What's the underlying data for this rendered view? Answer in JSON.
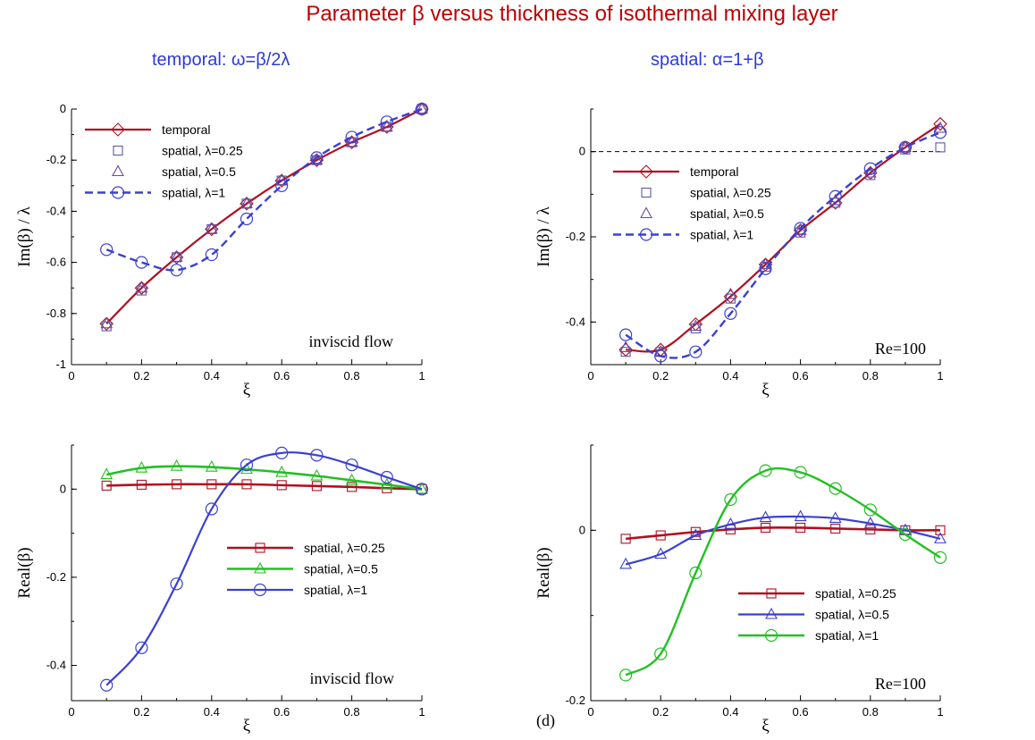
{
  "title": "Parameter β versus thickness of isothermal mixing layer",
  "subtitles": {
    "left": "temporal:  ω=β/2λ",
    "right": "spatial:  α=1+β"
  },
  "panel_tag": "(d)",
  "colors": {
    "title": "#c00000",
    "subtitle": "#2b3bd6",
    "dark_red": "#b01020",
    "blue": "#3a40d0",
    "green": "#22c022",
    "purple": "#6b4aa0"
  },
  "chart_data": [
    {
      "id": "top-left",
      "type": "line",
      "xlabel": "ξ",
      "ylabel": "Im(β) / λ",
      "xlim": [
        0,
        1
      ],
      "ylim": [
        -1,
        0
      ],
      "xticks": [
        "0",
        "0.2",
        "0.4",
        "0.6",
        "0.8",
        "1"
      ],
      "yticks": [
        "0",
        "-0.2",
        "-0.4",
        "-0.6",
        "-0.8",
        "-1"
      ],
      "annotation": "inviscid flow",
      "legend": [
        "temporal",
        "spatial, λ=0.25",
        "spatial, λ=0.5",
        "spatial, λ=1"
      ],
      "series": [
        {
          "name": "temporal",
          "x": [
            0.1,
            0.2,
            0.3,
            0.4,
            0.5,
            0.6,
            0.7,
            0.8,
            0.9,
            1.0
          ],
          "y": [
            -0.84,
            -0.7,
            -0.58,
            -0.47,
            -0.37,
            -0.28,
            -0.2,
            -0.13,
            -0.07,
            0.0
          ]
        },
        {
          "name": "spatial, λ=0.25",
          "x": [
            0.1,
            0.2,
            0.3,
            0.4,
            0.5,
            0.6,
            0.7,
            0.8,
            0.9,
            1.0
          ],
          "y": [
            -0.85,
            -0.71,
            -0.58,
            -0.47,
            -0.37,
            -0.28,
            -0.2,
            -0.13,
            -0.07,
            0.0
          ]
        },
        {
          "name": "spatial, λ=0.5",
          "x": [
            0.1,
            0.2,
            0.3,
            0.4,
            0.5,
            0.6,
            0.7,
            0.8,
            0.9,
            1.0
          ],
          "y": [
            -0.84,
            -0.7,
            -0.58,
            -0.47,
            -0.37,
            -0.28,
            -0.2,
            -0.13,
            -0.07,
            0.0
          ]
        },
        {
          "name": "spatial, λ=1",
          "x": [
            0.1,
            0.2,
            0.3,
            0.4,
            0.5,
            0.6,
            0.7,
            0.8,
            0.9,
            1.0
          ],
          "y": [
            -0.55,
            -0.6,
            -0.63,
            -0.57,
            -0.43,
            -0.3,
            -0.19,
            -0.11,
            -0.05,
            0.0
          ]
        }
      ]
    },
    {
      "id": "top-right",
      "type": "line",
      "xlabel": "ξ",
      "ylabel": "Im(β) / λ",
      "xlim": [
        0,
        1
      ],
      "ylim": [
        -0.5,
        0.1
      ],
      "xticks": [
        "0",
        "0.2",
        "0.4",
        "0.6",
        "0.8",
        "1"
      ],
      "yticks": [
        "0",
        "-0.2",
        "-0.4"
      ],
      "annotation": "Re=100",
      "legend": [
        "temporal",
        "spatial, λ=0.25",
        "spatial, λ=0.5",
        "spatial, λ=1"
      ],
      "series": [
        {
          "name": "temporal",
          "x": [
            0.1,
            0.2,
            0.3,
            0.4,
            0.5,
            0.6,
            0.7,
            0.8,
            0.9,
            1.0
          ],
          "y": [
            -0.465,
            -0.465,
            -0.405,
            -0.34,
            -0.265,
            -0.185,
            -0.12,
            -0.05,
            0.01,
            0.065
          ]
        },
        {
          "name": "spatial, λ=0.25",
          "x": [
            0.1,
            0.2,
            0.3,
            0.4,
            0.5,
            0.6,
            0.7,
            0.8,
            0.9,
            1.0
          ],
          "y": [
            -0.47,
            -0.47,
            -0.415,
            -0.345,
            -0.27,
            -0.19,
            -0.12,
            -0.055,
            0.005,
            0.01
          ]
        },
        {
          "name": "spatial, λ=0.5",
          "x": [
            0.1,
            0.2,
            0.3,
            0.4,
            0.5,
            0.6,
            0.7,
            0.8,
            0.9,
            1.0
          ],
          "y": [
            -0.46,
            -0.47,
            -0.41,
            -0.335,
            -0.265,
            -0.185,
            -0.115,
            -0.05,
            0.01,
            0.055
          ]
        },
        {
          "name": "spatial, λ=1",
          "x": [
            0.1,
            0.2,
            0.3,
            0.4,
            0.5,
            0.6,
            0.7,
            0.8,
            0.9,
            1.0
          ],
          "y": [
            -0.43,
            -0.48,
            -0.47,
            -0.38,
            -0.275,
            -0.18,
            -0.105,
            -0.04,
            0.01,
            0.045
          ]
        }
      ]
    },
    {
      "id": "bottom-left",
      "type": "line",
      "xlabel": "ξ",
      "ylabel": "Real(β)",
      "xlim": [
        0,
        1
      ],
      "ylim": [
        -0.48,
        0.1
      ],
      "xticks": [
        "0",
        "0.2",
        "0.4",
        "0.6",
        "0.8",
        "1"
      ],
      "yticks": [
        "0",
        "-0.2",
        "-0.4"
      ],
      "annotation": "inviscid flow",
      "legend": [
        "spatial, λ=0.25",
        "spatial, λ=0.5",
        "spatial, λ=1"
      ],
      "series": [
        {
          "name": "spatial, λ=0.25",
          "x": [
            0.1,
            0.2,
            0.3,
            0.4,
            0.5,
            0.6,
            0.7,
            0.8,
            0.9,
            1.0
          ],
          "y": [
            0.008,
            0.01,
            0.011,
            0.011,
            0.011,
            0.009,
            0.007,
            0.005,
            0.002,
            0.0
          ]
        },
        {
          "name": "spatial, λ=0.5",
          "x": [
            0.1,
            0.2,
            0.3,
            0.4,
            0.5,
            0.6,
            0.7,
            0.8,
            0.9,
            1.0
          ],
          "y": [
            0.033,
            0.048,
            0.052,
            0.05,
            0.045,
            0.038,
            0.03,
            0.02,
            0.01,
            0.0
          ]
        },
        {
          "name": "spatial, λ=1",
          "x": [
            0.1,
            0.2,
            0.3,
            0.4,
            0.5,
            0.6,
            0.7,
            0.8,
            0.9,
            1.0
          ],
          "y": [
            -0.445,
            -0.36,
            -0.215,
            -0.045,
            0.055,
            0.082,
            0.077,
            0.055,
            0.027,
            0.0
          ]
        }
      ]
    },
    {
      "id": "bottom-right",
      "type": "line",
      "xlabel": "ξ",
      "ylabel": "Real(β)",
      "xlim": [
        0,
        1
      ],
      "ylim": [
        -0.2,
        0.1
      ],
      "xticks": [
        "0",
        "0.2",
        "0.4",
        "0.6",
        "0.8",
        "1"
      ],
      "yticks": [
        "0",
        "-0.2"
      ],
      "annotation": "Re=100",
      "legend": [
        "spatial, λ=0.25",
        "spatial, λ=0.5",
        "spatial, λ=1"
      ],
      "series": [
        {
          "name": "spatial, λ=0.25",
          "x": [
            0.1,
            0.2,
            0.3,
            0.4,
            0.5,
            0.6,
            0.7,
            0.8,
            0.9,
            1.0
          ],
          "y": [
            -0.01,
            -0.006,
            -0.002,
            0.001,
            0.003,
            0.003,
            0.002,
            0.001,
            0.0,
            0.0
          ]
        },
        {
          "name": "spatial, λ=0.5",
          "x": [
            0.1,
            0.2,
            0.3,
            0.4,
            0.5,
            0.6,
            0.7,
            0.8,
            0.9,
            1.0
          ],
          "y": [
            -0.04,
            -0.028,
            -0.006,
            0.007,
            0.015,
            0.016,
            0.014,
            0.008,
            0.0,
            -0.01
          ]
        },
        {
          "name": "spatial, λ=1",
          "x": [
            0.1,
            0.2,
            0.3,
            0.4,
            0.5,
            0.6,
            0.7,
            0.8,
            0.9,
            1.0
          ],
          "y": [
            -0.17,
            -0.145,
            -0.05,
            0.036,
            0.07,
            0.068,
            0.049,
            0.024,
            -0.005,
            -0.032
          ]
        }
      ]
    }
  ]
}
